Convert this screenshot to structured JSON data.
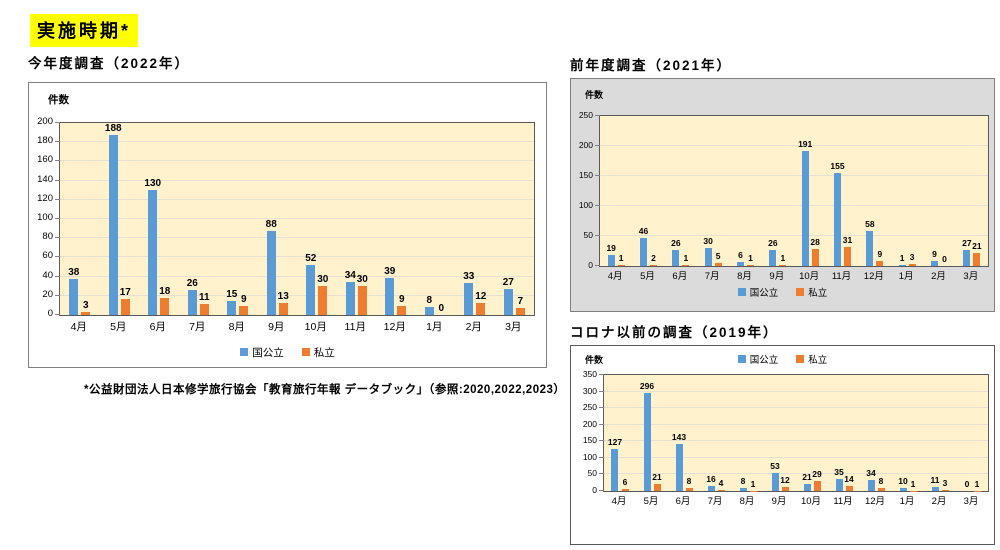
{
  "page": {
    "title": "実施時期*",
    "footnote": "*公益財団法人日本修学旅行協会「教育旅行年報 データブック」（参照:2020,2022,2023）",
    "highlight_color": "#FFFF00",
    "background_color": "#FFFFFF"
  },
  "colors": {
    "series_blue": "#5B9BD5",
    "series_orange": "#ED7D31",
    "plot_background": "#FFF2CC",
    "panel_gray": "#DBDBDB",
    "gridline": "#E4E1D2"
  },
  "chart_data": [
    {
      "type": "bar",
      "title": "今年度調査（2022年）",
      "ylabel": "件数",
      "ylim": [
        0,
        200
      ],
      "ytick_step": 20,
      "grid": true,
      "legend_position": "bottom",
      "categories": [
        "4月",
        "5月",
        "6月",
        "7月",
        "8月",
        "9月",
        "10月",
        "11月",
        "12月",
        "1月",
        "2月",
        "3月"
      ],
      "series": [
        {
          "name": "国公立",
          "color": "#5B9BD5",
          "values": [
            38,
            188,
            130,
            26,
            15,
            88,
            52,
            34,
            39,
            8,
            33,
            27
          ]
        },
        {
          "name": "私立",
          "color": "#ED7D31",
          "values": [
            3,
            17,
            18,
            11,
            9,
            13,
            30,
            30,
            9,
            0,
            12,
            7
          ]
        }
      ]
    },
    {
      "type": "bar",
      "title": "前年度調査（2021年）",
      "ylabel": "件数",
      "ylim": [
        0,
        250
      ],
      "ytick_step": 50,
      "grid": true,
      "legend_position": "bottom",
      "categories": [
        "4月",
        "5月",
        "6月",
        "7月",
        "8月",
        "9月",
        "10月",
        "11月",
        "12月",
        "1月",
        "2月",
        "3月"
      ],
      "series": [
        {
          "name": "国公立",
          "color": "#5B9BD5",
          "values": [
            19,
            46,
            26,
            30,
            6,
            26,
            191,
            155,
            58,
            1,
            9,
            27
          ]
        },
        {
          "name": "私立",
          "color": "#ED7D31",
          "values": [
            1,
            2,
            1,
            5,
            1,
            1,
            28,
            31,
            9,
            3,
            0,
            21
          ]
        }
      ]
    },
    {
      "type": "bar",
      "title": "コロナ以前の調査（2019年）",
      "ylabel": "件数",
      "ylim": [
        0,
        350
      ],
      "ytick_step": 50,
      "grid": true,
      "legend_position": "top",
      "categories": [
        "4月",
        "5月",
        "6月",
        "7月",
        "8月",
        "9月",
        "10月",
        "11月",
        "12月",
        "1月",
        "2月",
        "3月"
      ],
      "series": [
        {
          "name": "国公立",
          "color": "#5B9BD5",
          "values": [
            127,
            296,
            143,
            16,
            8,
            53,
            21,
            35,
            34,
            10,
            11,
            0
          ]
        },
        {
          "name": "私立",
          "color": "#ED7D31",
          "values": [
            6,
            21,
            8,
            4,
            1,
            12,
            29,
            14,
            8,
            1,
            3,
            1
          ]
        }
      ]
    }
  ]
}
